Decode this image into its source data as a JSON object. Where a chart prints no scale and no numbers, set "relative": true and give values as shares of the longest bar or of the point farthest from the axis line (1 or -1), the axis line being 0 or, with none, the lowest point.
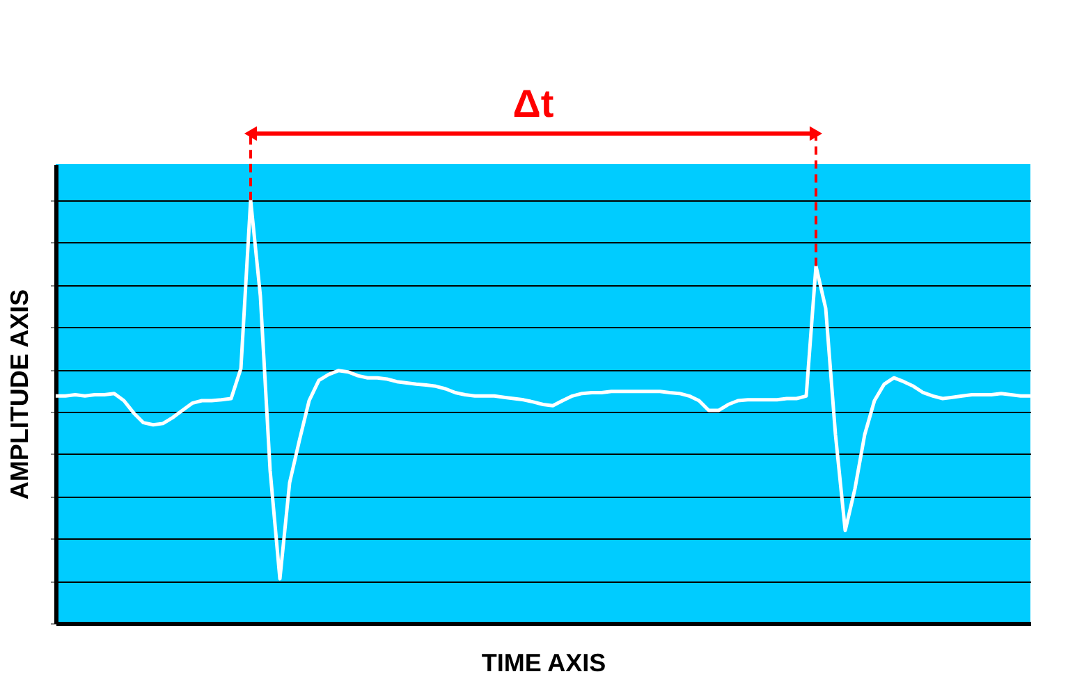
{
  "chart_data": {
    "type": "line",
    "relative": true,
    "xlabel": "TIME AXIS",
    "ylabel": "AMPLITUDE AXIS",
    "tick_labels": false,
    "grid": "y",
    "marker": "none",
    "line_style": "solid",
    "categories": [
      null,
      null,
      null,
      null,
      null,
      null,
      null,
      null,
      null,
      null,
      null,
      null,
      null,
      null,
      null,
      null,
      null,
      null,
      null,
      null,
      null,
      null,
      null,
      null,
      null,
      null,
      null,
      null,
      null,
      null,
      null,
      null,
      null,
      null,
      null,
      null,
      null,
      null,
      null,
      null,
      null,
      null,
      null,
      null,
      null,
      null,
      null,
      null,
      null,
      null,
      null,
      null,
      null,
      null,
      null,
      null,
      null,
      null,
      null,
      null,
      null,
      null,
      null,
      null,
      null,
      null,
      null,
      null,
      null,
      null,
      null,
      null,
      null,
      null,
      null,
      null,
      null,
      null,
      null,
      null,
      null,
      null,
      null,
      null,
      null,
      null,
      null,
      null,
      null,
      null,
      null,
      null,
      null,
      null,
      null,
      null,
      null,
      null,
      null,
      null,
      null
    ],
    "series": [
      {
        "color": "#ffffff",
        "values": [
          0.537,
          0.537,
          0.54,
          0.537,
          0.54,
          0.54,
          0.543,
          0.526,
          0.497,
          0.474,
          0.469,
          0.472,
          0.486,
          0.503,
          0.52,
          0.526,
          0.526,
          0.528,
          0.531,
          0.602,
          1,
          0.773,
          0.361,
          0.105,
          0.332,
          0.432,
          0.526,
          0.574,
          0.588,
          0.597,
          0.594,
          0.585,
          0.58,
          0.58,
          0.577,
          0.571,
          0.568,
          0.565,
          0.563,
          0.56,
          0.554,
          0.545,
          0.54,
          0.537,
          0.537,
          0.537,
          0.534,
          0.531,
          0.528,
          0.523,
          0.517,
          0.514,
          0.526,
          0.537,
          0.543,
          0.545,
          0.545,
          0.548,
          0.548,
          0.548,
          0.548,
          0.548,
          0.548,
          0.545,
          0.543,
          0.537,
          0.526,
          0.503,
          0.503,
          0.517,
          0.526,
          0.528,
          0.528,
          0.528,
          0.528,
          0.531,
          0.531,
          0.537,
          0.844,
          0.744,
          0.446,
          0.219,
          0.318,
          0.446,
          0.526,
          0.565,
          0.58,
          0.571,
          0.56,
          0.545,
          0.537,
          0.531,
          0.534,
          0.537,
          0.54,
          0.54,
          0.54,
          0.543,
          0.54,
          0.537,
          0.537
        ]
      }
    ],
    "annotations": [
      "Δt"
    ]
  }
}
